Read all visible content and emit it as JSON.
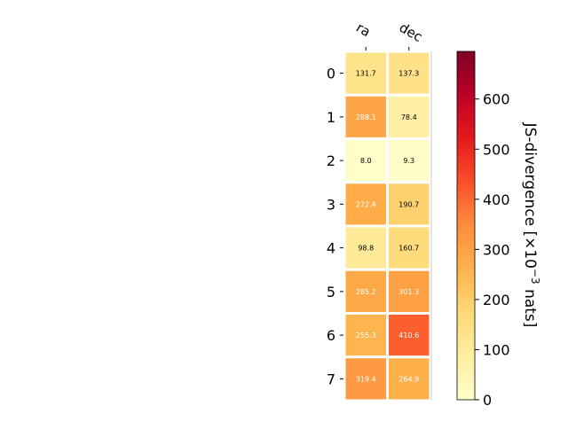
{
  "chart_data": {
    "type": "heatmap",
    "title": "",
    "columns": [
      "ra",
      "dec"
    ],
    "rows": [
      "0",
      "1",
      "2",
      "3",
      "4",
      "5",
      "6",
      "7"
    ],
    "values": [
      [
        131.7,
        137.3
      ],
      [
        288.1,
        78.4
      ],
      [
        8.0,
        9.3
      ],
      [
        272.4,
        190.7
      ],
      [
        98.8,
        160.7
      ],
      [
        285.2,
        301.3
      ],
      [
        255.3,
        410.6
      ],
      [
        319.4,
        264.9
      ]
    ],
    "value_labels": [
      [
        "131.7",
        "137.3"
      ],
      [
        "288.1",
        "78.4"
      ],
      [
        "8.0",
        "9.3"
      ],
      [
        "272.4",
        "190.7"
      ],
      [
        "98.8",
        "160.7"
      ],
      [
        "285.2",
        "301.3"
      ],
      [
        "255.3",
        "410.6"
      ],
      [
        "319.4",
        "264.9"
      ]
    ],
    "colorbar": {
      "label_main": "JS-divergence [×10",
      "label_exp": "−3",
      "label_unit": " nats]",
      "range": [
        0,
        695
      ],
      "ticks": [
        0,
        100,
        200,
        300,
        400,
        500,
        600
      ],
      "tick_labels": [
        "0",
        "100",
        "200",
        "300",
        "400",
        "500",
        "600"
      ],
      "colormap": "YlOrRd"
    },
    "grid": false,
    "legend": "none"
  }
}
